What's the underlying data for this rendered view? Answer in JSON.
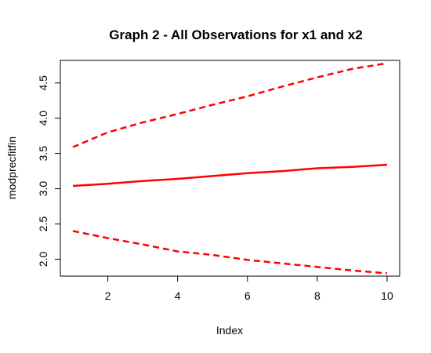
{
  "chart_data": {
    "type": "line",
    "title": "Graph 2 - All Observations for x1 and x2",
    "xlabel": "Index",
    "ylabel": "modprecfitfin",
    "xlim": [
      0.64,
      10.36
    ],
    "ylim": [
      1.76,
      4.82
    ],
    "x_ticks": [
      "2",
      "4",
      "6",
      "8",
      "10"
    ],
    "y_ticks": [
      "2.0",
      "2.5",
      "3.0",
      "3.5",
      "4.0",
      "4.5"
    ],
    "grid": false,
    "legend": "none",
    "series": [
      {
        "style": "dashed",
        "color": "#ff0000",
        "x": [
          1,
          2,
          3,
          4,
          5,
          6,
          7,
          8,
          9,
          10
        ],
        "values": [
          3.59,
          3.8,
          3.94,
          4.06,
          4.19,
          4.31,
          4.45,
          4.58,
          4.7,
          4.78
        ]
      },
      {
        "style": "solid",
        "color": "#ff0000",
        "x": [
          1,
          2,
          3,
          4,
          5,
          6,
          7,
          8,
          9,
          10
        ],
        "values": [
          3.04,
          3.07,
          3.11,
          3.14,
          3.18,
          3.22,
          3.25,
          3.29,
          3.31,
          3.34
        ]
      },
      {
        "style": "dashed",
        "color": "#ff0000",
        "x": [
          1,
          2,
          3,
          4,
          5,
          6,
          7,
          8,
          9,
          10
        ],
        "values": [
          2.4,
          2.3,
          2.21,
          2.11,
          2.06,
          1.99,
          1.94,
          1.89,
          1.84,
          1.8
        ]
      }
    ]
  }
}
